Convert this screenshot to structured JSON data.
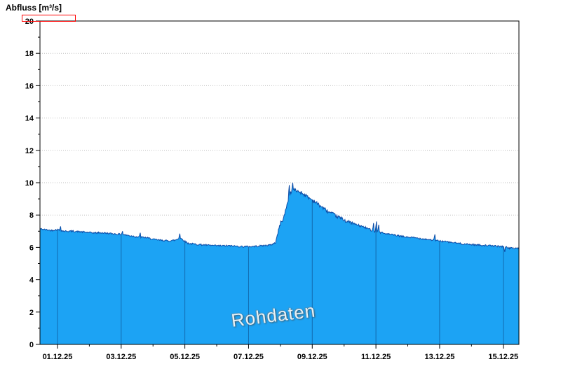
{
  "title": "Abfluss [m³/s]",
  "watermark": "Rohdaten",
  "colors": {
    "area_fill": "#1CA3F4",
    "area_stroke": "#0C4DA8",
    "grid_h": "#BFBFBF",
    "grid_v_on_area": "#0A3C78",
    "frame": "#000000",
    "text": "#000000",
    "axis_highlight": "#FF0000",
    "watermark_fill": "#F7F7F7"
  },
  "chart_data": {
    "type": "area",
    "title": "Abfluss [m³/s]",
    "ylabel": "Abfluss [m³/s]",
    "annotation": "Rohdaten",
    "ylim": [
      0,
      20
    ],
    "y_ticks": [
      0,
      2,
      4,
      6,
      8,
      10,
      12,
      14,
      16,
      18,
      20
    ],
    "y_minor_ticks": [
      1,
      3,
      5,
      7,
      9,
      11,
      13,
      15,
      17,
      19
    ],
    "x_tick_labels": [
      "01.12.25",
      "03.12.25",
      "05.12.25",
      "07.12.25",
      "09.12.25",
      "11.12.25",
      "13.12.25",
      "15.12.25"
    ],
    "x_tick_days": [
      0,
      2,
      4,
      6,
      8,
      10,
      12,
      14
    ],
    "x_minor_days": [
      1,
      3,
      5,
      7,
      9,
      11,
      13
    ],
    "x_domain_days": [
      -0.55,
      14.49
    ],
    "grid_horizontal": true,
    "grid_vertical_over_area": true,
    "legend": "none",
    "keypoints": [
      [
        -0.55,
        7.15
      ],
      [
        -0.4,
        7.1
      ],
      [
        -0.2,
        7.05
      ],
      [
        0,
        7.1
      ],
      [
        0.2,
        7.0
      ],
      [
        0.5,
        7.0
      ],
      [
        0.8,
        6.95
      ],
      [
        1.1,
        6.9
      ],
      [
        1.4,
        6.9
      ],
      [
        1.7,
        6.85
      ],
      [
        2.0,
        6.8
      ],
      [
        2.2,
        6.75
      ],
      [
        2.5,
        6.65
      ],
      [
        2.8,
        6.6
      ],
      [
        3.0,
        6.5
      ],
      [
        3.2,
        6.45
      ],
      [
        3.5,
        6.4
      ],
      [
        3.7,
        6.45
      ],
      [
        3.85,
        6.6
      ],
      [
        3.95,
        6.45
      ],
      [
        4.1,
        6.25
      ],
      [
        4.3,
        6.2
      ],
      [
        4.6,
        6.15
      ],
      [
        5.0,
        6.1
      ],
      [
        5.4,
        6.1
      ],
      [
        5.8,
        6.05
      ],
      [
        6.1,
        6.05
      ],
      [
        6.4,
        6.1
      ],
      [
        6.7,
        6.15
      ],
      [
        6.85,
        6.3
      ],
      [
        6.92,
        6.9
      ],
      [
        7.0,
        7.5
      ],
      [
        7.1,
        7.8
      ],
      [
        7.2,
        8.6
      ],
      [
        7.3,
        9.3
      ],
      [
        7.4,
        9.6
      ],
      [
        7.5,
        9.5
      ],
      [
        7.65,
        9.4
      ],
      [
        7.8,
        9.2
      ],
      [
        7.95,
        9.0
      ],
      [
        8.1,
        8.8
      ],
      [
        8.3,
        8.5
      ],
      [
        8.5,
        8.2
      ],
      [
        8.7,
        8.0
      ],
      [
        8.9,
        7.8
      ],
      [
        9.1,
        7.6
      ],
      [
        9.4,
        7.4
      ],
      [
        9.7,
        7.2
      ],
      [
        9.95,
        7.0
      ],
      [
        10.1,
        6.95
      ],
      [
        10.3,
        6.85
      ],
      [
        10.6,
        6.75
      ],
      [
        10.9,
        6.65
      ],
      [
        11.2,
        6.6
      ],
      [
        11.6,
        6.5
      ],
      [
        12.0,
        6.4
      ],
      [
        12.4,
        6.3
      ],
      [
        12.8,
        6.2
      ],
      [
        13.2,
        6.15
      ],
      [
        13.6,
        6.1
      ],
      [
        14.0,
        6.05
      ],
      [
        14.2,
        5.95
      ],
      [
        14.49,
        5.95
      ]
    ],
    "spikes": [
      [
        0.1,
        7.3
      ],
      [
        2.05,
        7.0
      ],
      [
        2.6,
        6.9
      ],
      [
        3.85,
        6.85
      ],
      [
        7.28,
        9.85
      ],
      [
        7.38,
        10.0
      ],
      [
        9.92,
        7.5
      ],
      [
        10.02,
        7.6
      ],
      [
        10.08,
        7.4
      ],
      [
        11.85,
        6.8
      ],
      [
        14.05,
        5.72
      ]
    ],
    "noise_ranges": [
      [
        -0.6,
        6.85,
        0.05
      ],
      [
        6.85,
        9.3,
        0.11
      ],
      [
        9.3,
        10.2,
        0.07
      ],
      [
        10.2,
        14.6,
        0.05
      ]
    ]
  }
}
